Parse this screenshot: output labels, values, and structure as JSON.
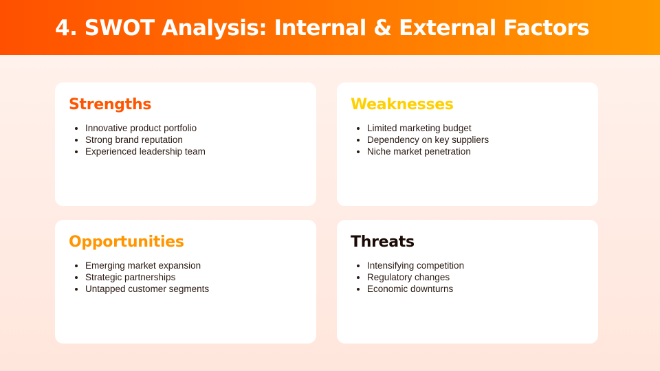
{
  "header": {
    "title": "4. SWOT Analysis: Internal & External Factors",
    "gradient": [
      "#ff5000",
      "#ff9a00"
    ]
  },
  "quadrants": [
    {
      "title": "Strengths",
      "color": "#ff5500",
      "items": [
        "Innovative product portfolio",
        "Strong brand reputation",
        "Experienced leadership team"
      ]
    },
    {
      "title": "Weaknesses",
      "color": "#ffd000",
      "items": [
        "Limited marketing budget",
        "Dependency on key suppliers",
        "Niche market penetration"
      ]
    },
    {
      "title": "Opportunities",
      "color": "#ff9500",
      "items": [
        "Emerging market expansion",
        "Strategic partnerships",
        "Untapped customer segments"
      ]
    },
    {
      "title": "Threats",
      "color": "#1a0a05",
      "items": [
        "Intensifying competition",
        "Regulatory changes",
        "Economic downturns"
      ]
    }
  ]
}
